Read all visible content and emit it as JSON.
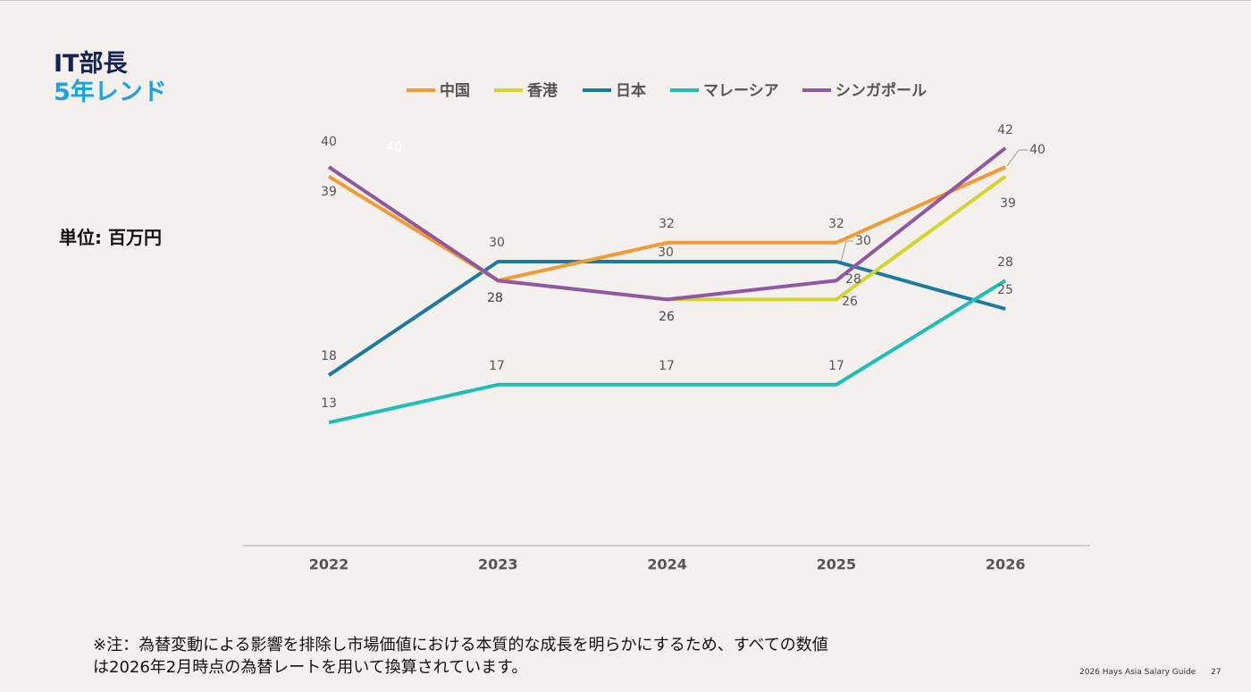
{
  "header": {
    "title": "IT部長",
    "subtitle": "5年レンド"
  },
  "unit": "単位: 百万円",
  "chart_data": {
    "type": "line",
    "categories": [
      "2022",
      "2023",
      "2024",
      "2025",
      "2026"
    ],
    "series": [
      {
        "name": "中国",
        "color": "#f39a36",
        "values": [
          39,
          28,
          32,
          32,
          40
        ]
      },
      {
        "name": "香港",
        "color": "#d4d42c",
        "values": [
          40,
          28,
          26,
          26,
          39
        ]
      },
      {
        "name": "日本",
        "color": "#1b7aa0",
        "values": [
          18,
          30,
          30,
          30,
          25
        ]
      },
      {
        "name": "マレーシア",
        "color": "#1dbfb4",
        "values": [
          13,
          17,
          17,
          17,
          28
        ]
      },
      {
        "name": "シンガポール",
        "color": "#9157a5",
        "values": [
          40,
          28,
          26,
          28,
          42
        ]
      }
    ],
    "ylim": [
      0,
      45
    ]
  },
  "note": [
    "※注：為替変動による影響を排除し市場価値における本質的な成長を明らかにするため、すべての数値",
    "は2026年2月時点の為替レートを用いて換算されています。"
  ],
  "footer": {
    "guide": "2026 Hays Asia Salary Guide",
    "page": "27"
  }
}
